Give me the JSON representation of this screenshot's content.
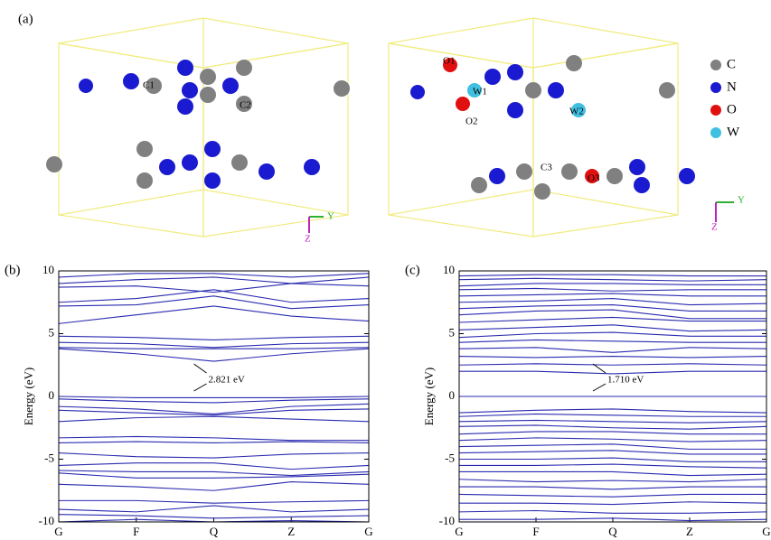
{
  "panel_a": {
    "label": "(a)",
    "left_atom_labels": [
      "C1",
      "C2"
    ],
    "right_atom_labels": [
      "O1",
      "W1",
      "O2",
      "W2",
      "C3",
      "O3"
    ],
    "legend": [
      "C",
      "N",
      "O",
      "W"
    ],
    "axes": [
      "Y",
      "Z"
    ]
  },
  "chart_data": [
    {
      "type": "line",
      "label": "(b)",
      "ylabel": "Energy (eV)",
      "annotation": "2.821 eV",
      "categories": [
        "G",
        "F",
        "Q",
        "Z",
        "G"
      ],
      "color": "#2a2ab0",
      "ylim": [
        -10,
        10
      ],
      "yticks": [
        10,
        5,
        0,
        -5,
        -10
      ],
      "series": [
        {
          "values": [
            10,
            10,
            10,
            10,
            10
          ]
        },
        {
          "values": [
            9.5,
            9.8,
            9.8,
            9.5,
            9.8
          ]
        },
        {
          "values": [
            9,
            9.3,
            9.5,
            9,
            9.5
          ]
        },
        {
          "values": [
            8.7,
            8.8,
            8.3,
            9,
            8.8
          ]
        },
        {
          "values": [
            7.5,
            7.8,
            8.5,
            7.5,
            7.8
          ]
        },
        {
          "values": [
            7.2,
            7.3,
            8,
            7,
            7.3
          ]
        },
        {
          "values": [
            5.8,
            6.5,
            7.2,
            6.4,
            6
          ]
        },
        {
          "values": [
            4.8,
            4.7,
            4.5,
            4.7,
            4.8
          ]
        },
        {
          "values": [
            4.3,
            4.2,
            3.9,
            4.2,
            4.3
          ]
        },
        {
          "values": [
            3.9,
            3.8,
            3.8,
            3.8,
            3.9
          ]
        },
        {
          "values": [
            3.8,
            3.4,
            2.8,
            3.4,
            3.8
          ]
        },
        {
          "values": [
            0,
            -0.1,
            -0.1,
            -0.1,
            0
          ]
        },
        {
          "values": [
            -0.2,
            -0.4,
            -0.5,
            -0.3,
            -0.2
          ]
        },
        {
          "values": [
            -0.8,
            -1,
            -1.4,
            -0.8,
            -0.6
          ]
        },
        {
          "values": [
            -1.1,
            -1.3,
            -1.5,
            -1.1,
            -1
          ]
        },
        {
          "values": [
            -2,
            -1.7,
            -1.6,
            -1.8,
            -2
          ]
        },
        {
          "values": [
            -3.3,
            -3.2,
            -3.3,
            -3.5,
            -3.5
          ]
        },
        {
          "values": [
            -3.7,
            -3.6,
            -3.7,
            -3.6,
            -3.7
          ]
        },
        {
          "values": [
            -4.5,
            -4.8,
            -4.9,
            -4.6,
            -4.5
          ]
        },
        {
          "values": [
            -5.5,
            -5.3,
            -5.3,
            -5.8,
            -5.5
          ]
        },
        {
          "values": [
            -5.9,
            -6,
            -6,
            -6.3,
            -6
          ]
        },
        {
          "values": [
            -6.1,
            -6.5,
            -6.5,
            -6.4,
            -6.2
          ]
        },
        {
          "values": [
            -7,
            -7.2,
            -7.5,
            -6.8,
            -7
          ]
        },
        {
          "values": [
            -8.3,
            -8.3,
            -8.5,
            -8.4,
            -8.3
          ]
        },
        {
          "values": [
            -9,
            -9.2,
            -8.7,
            -9.2,
            -9
          ]
        },
        {
          "values": [
            -9.4,
            -9.5,
            -9.7,
            -9.6,
            -9.5
          ]
        },
        {
          "values": [
            -10,
            -9.8,
            -10,
            -9.9,
            -10
          ]
        }
      ]
    },
    {
      "type": "line",
      "label": "(c)",
      "ylabel": "Energy (eV)",
      "annotation": "1.710 eV",
      "categories": [
        "G",
        "F",
        "Q",
        "Z",
        "G"
      ],
      "color": "#2a2ab0",
      "ylim": [
        -10,
        10
      ],
      "yticks": [
        10,
        5,
        0,
        -5,
        -10
      ],
      "series": [
        {
          "values": [
            10,
            10,
            10,
            10,
            10
          ]
        },
        {
          "values": [
            9.6,
            9.7,
            9.7,
            9.6,
            9.6
          ]
        },
        {
          "values": [
            9.3,
            9.4,
            9.3,
            9.2,
            9.3
          ]
        },
        {
          "values": [
            8.8,
            9,
            9,
            8.9,
            8.9
          ]
        },
        {
          "values": [
            8.5,
            8.6,
            8.4,
            8.5,
            8.5
          ]
        },
        {
          "values": [
            8,
            8.1,
            8.2,
            8,
            8
          ]
        },
        {
          "values": [
            7.5,
            7.6,
            7.8,
            7.3,
            7.4
          ]
        },
        {
          "values": [
            7,
            7.2,
            7.3,
            6.8,
            6.8
          ]
        },
        {
          "values": [
            6.5,
            6.8,
            6.9,
            6.2,
            6.2
          ]
        },
        {
          "values": [
            5.9,
            6.1,
            6.3,
            6,
            6
          ]
        },
        {
          "values": [
            5.3,
            5.5,
            5.7,
            5.2,
            5.3
          ]
        },
        {
          "values": [
            4.7,
            5,
            5.1,
            4.8,
            4.8
          ]
        },
        {
          "values": [
            4.3,
            4.5,
            4.4,
            4.3,
            4.3
          ]
        },
        {
          "values": [
            3.8,
            3.9,
            3.5,
            3.9,
            3.8
          ]
        },
        {
          "values": [
            3.2,
            3.1,
            3.2,
            3.1,
            3.2
          ]
        },
        {
          "values": [
            2.5,
            2.6,
            2.5,
            2.6,
            2.5
          ]
        },
        {
          "values": [
            2,
            2,
            1.8,
            2,
            2
          ]
        },
        {
          "values": [
            0,
            0,
            0,
            0,
            0
          ]
        },
        {
          "values": [
            -1.3,
            -1.1,
            -1,
            -1.2,
            -1.3
          ]
        },
        {
          "values": [
            -1.6,
            -1.4,
            -1.5,
            -1.6,
            -1.6
          ]
        },
        {
          "values": [
            -2,
            -1.9,
            -2,
            -2.1,
            -2
          ]
        },
        {
          "values": [
            -2.4,
            -2.3,
            -2.5,
            -2.6,
            -2.4
          ]
        },
        {
          "values": [
            -3,
            -2.8,
            -2.8,
            -3,
            -3
          ]
        },
        {
          "values": [
            -3.5,
            -3.3,
            -3.4,
            -3.6,
            -3.5
          ]
        },
        {
          "values": [
            -4,
            -3.9,
            -3.8,
            -4.2,
            -4.2
          ]
        },
        {
          "values": [
            -4.5,
            -4.4,
            -4.3,
            -4.6,
            -4.6
          ]
        },
        {
          "values": [
            -5,
            -5,
            -4.9,
            -5.2,
            -5.2
          ]
        },
        {
          "values": [
            -5.5,
            -5.5,
            -5.4,
            -5.6,
            -5.7
          ]
        },
        {
          "values": [
            -6,
            -6,
            -6,
            -6.3,
            -6.2
          ]
        },
        {
          "values": [
            -6.6,
            -6.8,
            -6.7,
            -6.8,
            -6.6
          ]
        },
        {
          "values": [
            -7.2,
            -7.2,
            -7.4,
            -7.2,
            -7.2
          ]
        },
        {
          "values": [
            -7.8,
            -7.9,
            -8,
            -7.8,
            -7.8
          ]
        },
        {
          "values": [
            -8.5,
            -8.5,
            -8.6,
            -8.4,
            -8.5
          ]
        },
        {
          "values": [
            -9.2,
            -9.1,
            -9.3,
            -9.3,
            -9.2
          ]
        },
        {
          "values": [
            -9.8,
            -9.8,
            -9.7,
            -9.9,
            -9.8
          ]
        }
      ]
    }
  ]
}
